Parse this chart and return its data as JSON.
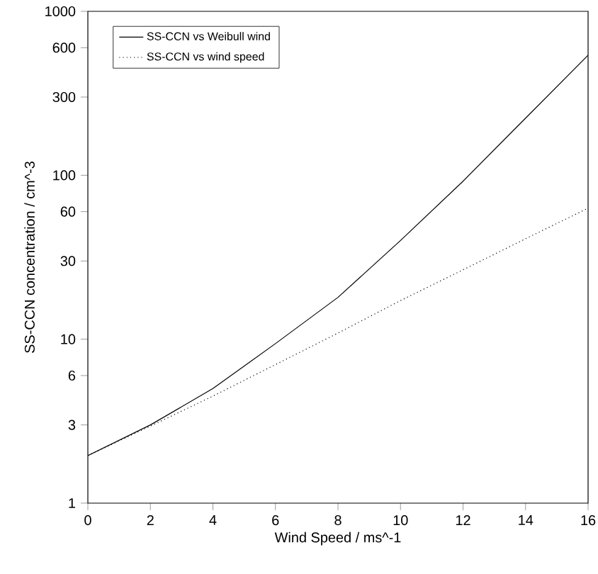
{
  "chart_data": {
    "type": "line",
    "xlabel": "Wind Speed / ms^-1",
    "ylabel": "SS-CCN concentration / cm^-3",
    "x": [
      0,
      2,
      4,
      6,
      8,
      10,
      12,
      14,
      16
    ],
    "series": [
      {
        "name": "SS-CCN vs Weibull wind",
        "color": "#000000",
        "line_style": "solid",
        "values": [
          1.95,
          3.0,
          5.0,
          9.4,
          18,
          40,
          92,
          223,
          540
        ]
      },
      {
        "name": "SS-CCN vs wind speed",
        "color": "#000000",
        "line_style": "dotted",
        "values": [
          1.95,
          2.95,
          4.5,
          7.0,
          10.9,
          17.2,
          26.5,
          41,
          63
        ]
      }
    ],
    "xlim": [
      0,
      16
    ],
    "xticks": [
      0,
      2,
      4,
      6,
      8,
      10,
      12,
      14,
      16
    ],
    "ylim": [
      1,
      1000
    ],
    "yticks": [
      1,
      3,
      6,
      10,
      30,
      60,
      100,
      300,
      600,
      1000
    ],
    "log": "y",
    "grid": false,
    "legend": "top left",
    "marker": "none"
  }
}
